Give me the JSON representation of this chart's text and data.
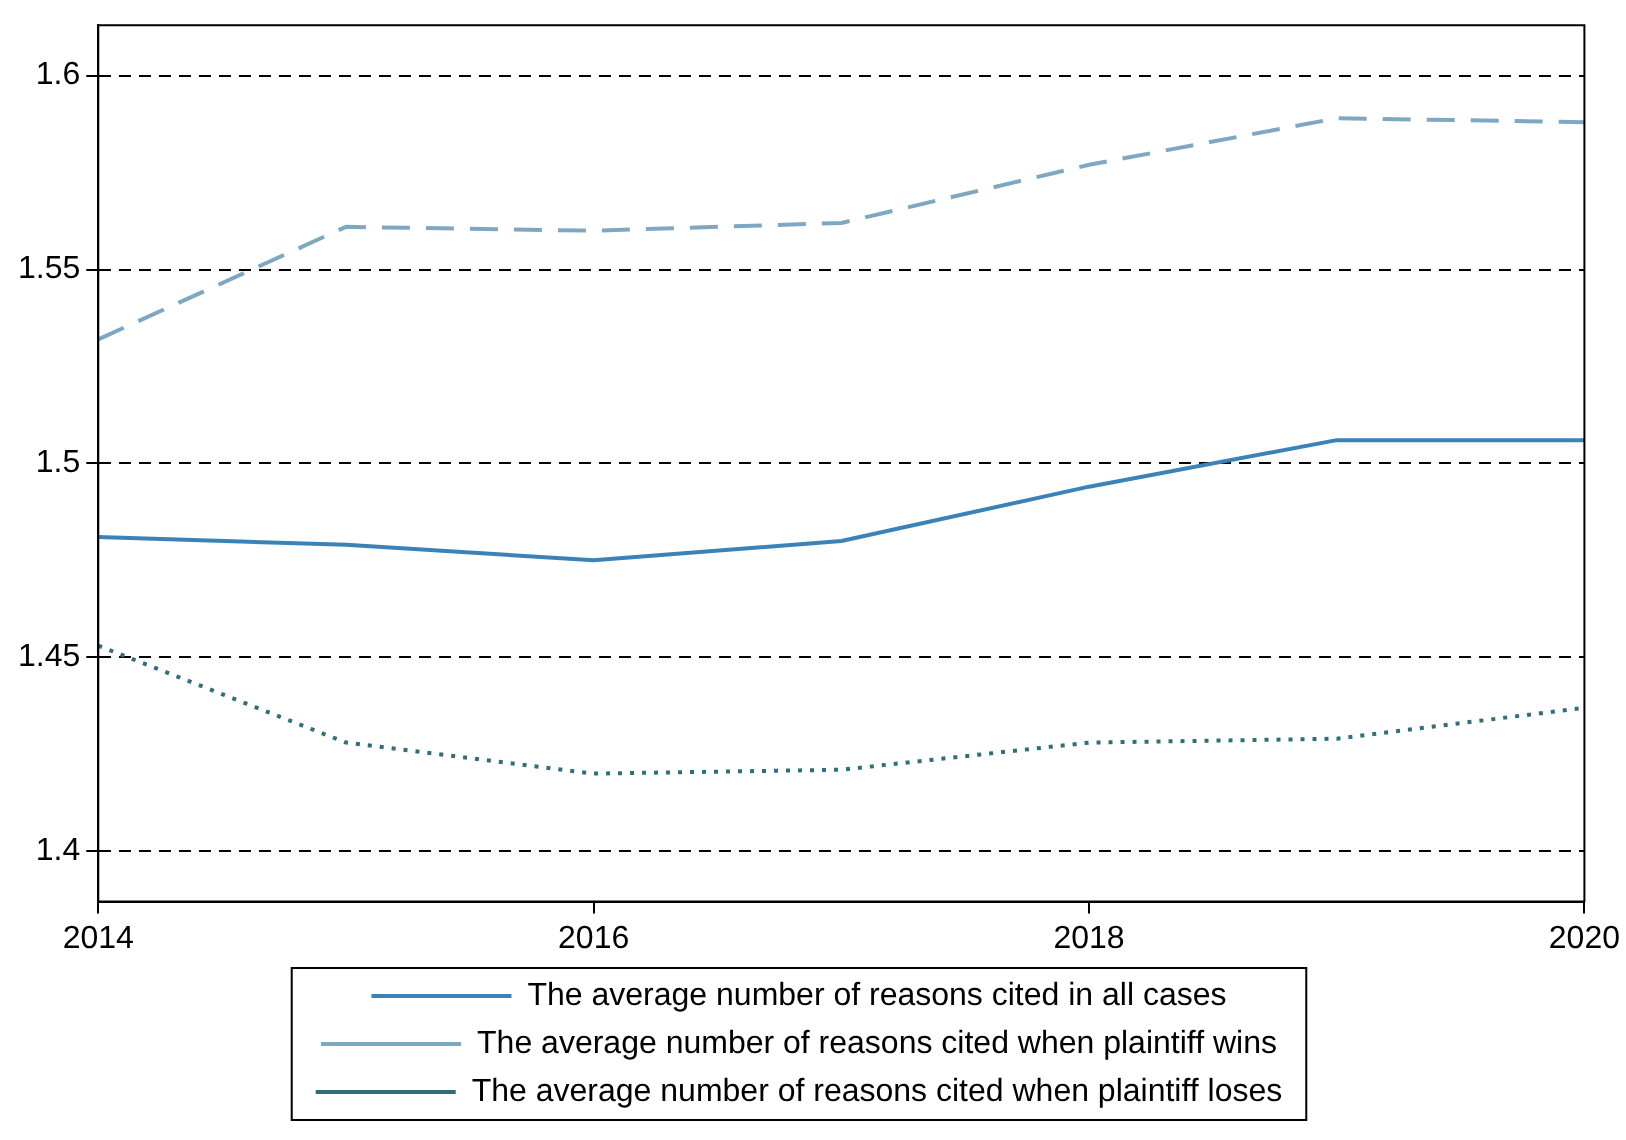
{
  "chart_data": {
    "type": "line",
    "x": [
      2014,
      2015,
      2016,
      2017,
      2018,
      2019,
      2020
    ],
    "xlim": [
      2014,
      2020
    ],
    "xticks": [
      2014,
      2016,
      2018,
      2020
    ],
    "ylim": [
      1.387,
      1.613
    ],
    "yticks": [
      1.4,
      1.45,
      1.5,
      1.55,
      1.6
    ],
    "grid": "y",
    "legend": "bottom",
    "marker": "none",
    "series": [
      {
        "name": "The average number of reasons cited in all cases",
        "color": "#3b82b8",
        "line_style": "solid",
        "values": [
          1.481,
          1.479,
          1.475,
          1.48,
          1.494,
          1.506,
          1.506
        ]
      },
      {
        "name": "The average number of reasons cited when plaintiff wins",
        "color": "#7ea8c2",
        "line_style": "dashed",
        "values": [
          1.532,
          1.561,
          1.56,
          1.562,
          1.577,
          1.589,
          1.588
        ]
      },
      {
        "name": "The average number of reasons cited when plaintiff loses",
        "color": "#2f6f7c",
        "line_style": "dotted",
        "values": [
          1.453,
          1.428,
          1.42,
          1.421,
          1.428,
          1.429,
          1.437
        ]
      }
    ]
  }
}
